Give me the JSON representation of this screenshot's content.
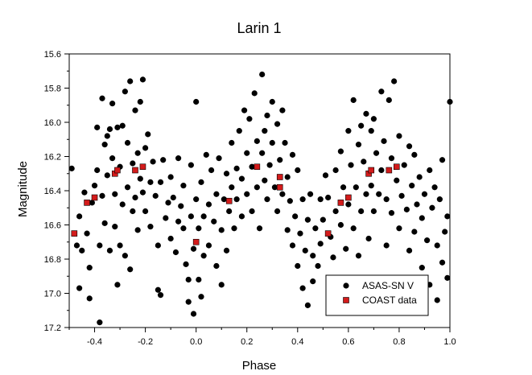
{
  "chart_data": {
    "type": "scatter",
    "title": "Larin 1",
    "xlabel": "Phase",
    "ylabel": "Magnitude",
    "xlim": [
      -0.5,
      1.0
    ],
    "ylim": [
      17.2,
      15.6
    ],
    "y_inverted": true,
    "grid": false,
    "legend_position": "bottom-right",
    "x_ticks": [
      {
        "value": -0.4,
        "label": "-0.4"
      },
      {
        "value": -0.2,
        "label": "-0.2"
      },
      {
        "value": 0.0,
        "label": "0.0"
      },
      {
        "value": 0.2,
        "label": "0.2"
      },
      {
        "value": 0.4,
        "label": "0.4"
      },
      {
        "value": 0.6,
        "label": "0.6"
      },
      {
        "value": 0.8,
        "label": "0.8"
      },
      {
        "value": 1.0,
        "label": "1.0"
      }
    ],
    "y_ticks": [
      {
        "value": 15.6,
        "label": "15.6"
      },
      {
        "value": 15.8,
        "label": "15.8"
      },
      {
        "value": 16.0,
        "label": "16.0"
      },
      {
        "value": 16.2,
        "label": "16.2"
      },
      {
        "value": 16.4,
        "label": "16.4"
      },
      {
        "value": 16.6,
        "label": "16.6"
      },
      {
        "value": 16.8,
        "label": "16.8"
      },
      {
        "value": 17.0,
        "label": "17.0"
      },
      {
        "value": 17.2,
        "label": "17.2"
      }
    ],
    "series": [
      {
        "name": "ASAS-SN V",
        "marker": "circle",
        "color": "#000000",
        "points": [
          [
            -0.49,
            16.27
          ],
          [
            -0.48,
            16.65
          ],
          [
            -0.47,
            16.72
          ],
          [
            -0.46,
            16.55
          ],
          [
            -0.46,
            16.97
          ],
          [
            -0.45,
            16.75
          ],
          [
            -0.44,
            16.41
          ],
          [
            -0.43,
            16.65
          ],
          [
            -0.42,
            17.03
          ],
          [
            -0.42,
            16.85
          ],
          [
            -0.41,
            16.47
          ],
          [
            -0.4,
            16.37
          ],
          [
            -0.39,
            16.03
          ],
          [
            -0.39,
            16.28
          ],
          [
            -0.38,
            16.72
          ],
          [
            -0.38,
            17.17
          ],
          [
            -0.37,
            16.43
          ],
          [
            -0.37,
            15.86
          ],
          [
            -0.36,
            16.13
          ],
          [
            -0.36,
            16.59
          ],
          [
            -0.35,
            16.08
          ],
          [
            -0.35,
            16.31
          ],
          [
            -0.34,
            16.04
          ],
          [
            -0.34,
            16.75
          ],
          [
            -0.33,
            15.89
          ],
          [
            -0.33,
            16.21
          ],
          [
            -0.32,
            16.42
          ],
          [
            -0.32,
            16.61
          ],
          [
            -0.31,
            16.03
          ],
          [
            -0.31,
            16.95
          ],
          [
            -0.3,
            16.26
          ],
          [
            -0.3,
            16.72
          ],
          [
            -0.29,
            16.02
          ],
          [
            -0.29,
            16.48
          ],
          [
            -0.28,
            16.78
          ],
          [
            -0.28,
            15.82
          ],
          [
            -0.27,
            16.12
          ],
          [
            -0.27,
            16.38
          ],
          [
            -0.26,
            16.86
          ],
          [
            -0.26,
            15.76
          ],
          [
            -0.25,
            16.24
          ],
          [
            -0.25,
            16.52
          ],
          [
            -0.24,
            15.93
          ],
          [
            -0.24,
            16.44
          ],
          [
            -0.23,
            16.18
          ],
          [
            -0.23,
            16.63
          ],
          [
            -0.22,
            15.88
          ],
          [
            -0.22,
            16.33
          ],
          [
            -0.21,
            15.75
          ],
          [
            -0.21,
            16.41
          ],
          [
            -0.2,
            16.15
          ],
          [
            -0.2,
            16.52
          ],
          [
            -0.19,
            16.07
          ],
          [
            -0.18,
            16.35
          ],
          [
            -0.18,
            16.61
          ],
          [
            -0.17,
            16.23
          ],
          [
            -0.16,
            16.43
          ],
          [
            -0.15,
            16.72
          ],
          [
            -0.15,
            16.98
          ],
          [
            -0.14,
            16.35
          ],
          [
            -0.14,
            17.01
          ],
          [
            -0.13,
            16.22
          ],
          [
            -0.12,
            16.56
          ],
          [
            -0.11,
            16.47
          ],
          [
            -0.1,
            16.68
          ],
          [
            -0.1,
            16.32
          ],
          [
            -0.09,
            16.44
          ],
          [
            -0.08,
            16.76
          ],
          [
            -0.07,
            16.21
          ],
          [
            -0.07,
            16.58
          ],
          [
            -0.06,
            16.49
          ],
          [
            -0.05,
            16.37
          ],
          [
            -0.05,
            16.62
          ],
          [
            -0.04,
            16.83
          ],
          [
            -0.03,
            16.92
          ],
          [
            -0.03,
            17.05
          ],
          [
            -0.02,
            16.25
          ],
          [
            -0.02,
            16.55
          ],
          [
            -0.01,
            16.74
          ],
          [
            -0.01,
            17.12
          ],
          [
            0.0,
            15.88
          ],
          [
            0.0,
            16.45
          ],
          [
            0.01,
            16.62
          ],
          [
            0.01,
            16.92
          ],
          [
            0.02,
            16.35
          ],
          [
            0.02,
            17.02
          ],
          [
            0.03,
            16.55
          ],
          [
            0.03,
            16.78
          ],
          [
            0.04,
            16.19
          ],
          [
            0.05,
            16.48
          ],
          [
            0.05,
            16.72
          ],
          [
            0.06,
            16.28
          ],
          [
            0.07,
            16.58
          ],
          [
            0.08,
            16.42
          ],
          [
            0.08,
            16.84
          ],
          [
            0.09,
            16.21
          ],
          [
            0.1,
            16.63
          ],
          [
            0.1,
            16.95
          ],
          [
            0.11,
            16.45
          ],
          [
            0.12,
            16.3
          ],
          [
            0.12,
            16.75
          ],
          [
            0.13,
            16.52
          ],
          [
            0.14,
            16.38
          ],
          [
            0.14,
            16.12
          ],
          [
            0.15,
            16.62
          ],
          [
            0.16,
            16.45
          ],
          [
            0.16,
            16.27
          ],
          [
            0.17,
            16.05
          ],
          [
            0.18,
            16.33
          ],
          [
            0.18,
            16.55
          ],
          [
            0.19,
            15.93
          ],
          [
            0.2,
            16.18
          ],
          [
            0.2,
            16.42
          ],
          [
            0.21,
            15.98
          ],
          [
            0.22,
            16.26
          ],
          [
            0.22,
            16.52
          ],
          [
            0.23,
            15.83
          ],
          [
            0.24,
            16.11
          ],
          [
            0.24,
            16.38
          ],
          [
            0.25,
            16.62
          ],
          [
            0.26,
            15.72
          ],
          [
            0.26,
            16.18
          ],
          [
            0.27,
            16.34
          ],
          [
            0.27,
            16.05
          ],
          [
            0.28,
            15.96
          ],
          [
            0.28,
            16.45
          ],
          [
            0.29,
            16.25
          ],
          [
            0.3,
            15.88
          ],
          [
            0.3,
            16.12
          ],
          [
            0.31,
            16.38
          ],
          [
            0.32,
            16.01
          ],
          [
            0.32,
            16.52
          ],
          [
            0.33,
            16.22
          ],
          [
            0.34,
            15.93
          ],
          [
            0.34,
            16.42
          ],
          [
            0.35,
            16.12
          ],
          [
            0.36,
            16.63
          ],
          [
            0.36,
            16.32
          ],
          [
            0.37,
            16.46
          ],
          [
            0.38,
            16.19
          ],
          [
            0.38,
            16.72
          ],
          [
            0.39,
            16.55
          ],
          [
            0.4,
            16.28
          ],
          [
            0.4,
            16.84
          ],
          [
            0.41,
            16.65
          ],
          [
            0.42,
            16.45
          ],
          [
            0.42,
            16.97
          ],
          [
            0.43,
            16.75
          ],
          [
            0.44,
            17.07
          ],
          [
            0.44,
            16.57
          ],
          [
            0.45,
            16.42
          ],
          [
            0.46,
            16.78
          ],
          [
            0.46,
            16.93
          ],
          [
            0.47,
            16.62
          ],
          [
            0.48,
            16.84
          ],
          [
            0.49,
            16.45
          ],
          [
            0.49,
            16.71
          ],
          [
            0.5,
            16.57
          ],
          [
            0.51,
            16.31
          ],
          [
            0.52,
            16.44
          ],
          [
            0.53,
            16.67
          ],
          [
            0.54,
            16.79
          ],
          [
            0.55,
            16.28
          ],
          [
            0.55,
            16.52
          ],
          [
            0.56,
            16.94
          ],
          [
            0.57,
            16.17
          ],
          [
            0.57,
            16.6
          ],
          [
            0.58,
            16.38
          ],
          [
            0.59,
            16.74
          ],
          [
            0.6,
            16.05
          ],
          [
            0.6,
            16.48
          ],
          [
            0.61,
            16.25
          ],
          [
            0.62,
            15.87
          ],
          [
            0.62,
            16.62
          ],
          [
            0.63,
            16.38
          ],
          [
            0.64,
            16.13
          ],
          [
            0.64,
            16.78
          ],
          [
            0.65,
            16.02
          ],
          [
            0.65,
            16.52
          ],
          [
            0.66,
            16.23
          ],
          [
            0.67,
            15.95
          ],
          [
            0.67,
            16.42
          ],
          [
            0.68,
            16.68
          ],
          [
            0.69,
            16.05
          ],
          [
            0.69,
            16.37
          ],
          [
            0.7,
            15.98
          ],
          [
            0.7,
            16.52
          ],
          [
            0.71,
            16.18
          ],
          [
            0.72,
            16.42
          ],
          [
            0.73,
            15.82
          ],
          [
            0.73,
            16.28
          ],
          [
            0.74,
            16.11
          ],
          [
            0.75,
            16.45
          ],
          [
            0.75,
            16.72
          ],
          [
            0.76,
            15.87
          ],
          [
            0.77,
            16.21
          ],
          [
            0.77,
            16.53
          ],
          [
            0.78,
            15.76
          ],
          [
            0.79,
            16.34
          ],
          [
            0.8,
            16.08
          ],
          [
            0.8,
            16.62
          ],
          [
            0.81,
            16.43
          ],
          [
            0.82,
            16.25
          ],
          [
            0.83,
            16.51
          ],
          [
            0.84,
            16.14
          ],
          [
            0.84,
            16.75
          ],
          [
            0.85,
            16.37
          ],
          [
            0.86,
            16.64
          ],
          [
            0.86,
            16.19
          ],
          [
            0.87,
            16.48
          ],
          [
            0.88,
            16.32
          ],
          [
            0.89,
            16.85
          ],
          [
            0.89,
            16.56
          ],
          [
            0.9,
            16.42
          ],
          [
            0.91,
            16.69
          ],
          [
            0.92,
            16.28
          ],
          [
            0.92,
            16.95
          ],
          [
            0.93,
            16.5
          ],
          [
            0.94,
            16.38
          ],
          [
            0.95,
            16.72
          ],
          [
            0.95,
            17.04
          ],
          [
            0.96,
            16.45
          ],
          [
            0.97,
            16.82
          ],
          [
            0.97,
            16.22
          ],
          [
            0.98,
            16.64
          ],
          [
            0.99,
            16.91
          ],
          [
            0.99,
            16.55
          ],
          [
            1.0,
            15.88
          ]
        ]
      },
      {
        "name": "COAST data",
        "marker": "square",
        "color": "#d31b1b",
        "points": [
          [
            -0.48,
            16.65
          ],
          [
            -0.43,
            16.47
          ],
          [
            -0.4,
            16.44
          ],
          [
            -0.32,
            16.3
          ],
          [
            -0.31,
            16.28
          ],
          [
            -0.24,
            16.28
          ],
          [
            -0.21,
            16.26
          ],
          [
            0.0,
            16.7
          ],
          [
            0.13,
            16.46
          ],
          [
            0.24,
            16.26
          ],
          [
            0.33,
            16.32
          ],
          [
            0.33,
            16.38
          ],
          [
            0.52,
            16.65
          ],
          [
            0.57,
            16.47
          ],
          [
            0.6,
            16.44
          ],
          [
            0.68,
            16.3
          ],
          [
            0.69,
            16.28
          ],
          [
            0.76,
            16.28
          ],
          [
            0.79,
            16.26
          ]
        ]
      }
    ]
  }
}
